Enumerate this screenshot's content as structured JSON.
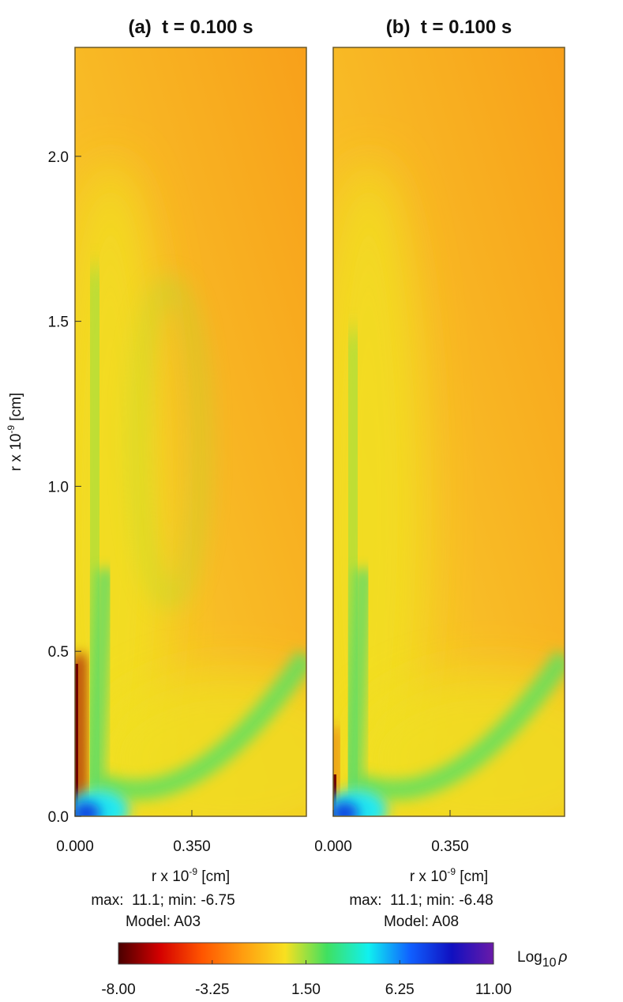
{
  "chart_data": [
    {
      "type": "heatmap",
      "title": "(a)  t = 0.100 s",
      "xlim": [
        0,
        0.693
      ],
      "xticks": [
        {
          "value": 0,
          "label": "0.000"
        },
        {
          "value": 0.35,
          "label": "0.350"
        }
      ],
      "ylim": [
        0,
        2.33
      ],
      "yticks": [
        {
          "value": 0,
          "label": "0.0"
        },
        0.5,
        {
          "value": 1,
          "label": "1.0"
        },
        1.5,
        {
          "value": 2,
          "label": "2.0"
        }
      ],
      "xlabel": {
        "base": "r x 10",
        "exponent": "-9",
        "unit": " [cm]"
      },
      "ylabel": {
        "base": "r x 10",
        "exponent": "-9",
        "unit": " [cm]"
      },
      "annotations": [
        "max:  11.1; min: -6.75",
        "Model: A03"
      ]
    },
    {
      "type": "heatmap",
      "title": "(b)  t = 0.100 s",
      "xlim": [
        0,
        0.693
      ],
      "xticks": [
        {
          "value": 0,
          "label": "0.000"
        },
        {
          "value": 0.35,
          "label": "0.350"
        }
      ],
      "ylim": [
        0,
        2.33
      ],
      "xlabel": {
        "base": "r x 10",
        "exponent": "-9",
        "unit": " [cm]"
      },
      "annotations": [
        "max:  11.1; min: -6.48",
        "Model: A08"
      ]
    }
  ],
  "colorbar": {
    "label": {
      "base": "Log",
      "subscript": "10",
      "symbol": "ρ"
    },
    "lim": [
      -8,
      11
    ],
    "ticks": [
      {
        "value": -8,
        "label": "-8.00"
      },
      {
        "value": -3.25,
        "label": "-3.25"
      },
      {
        "value": 1.5,
        "label": "1.50"
      },
      {
        "value": 6.25,
        "label": "6.25"
      },
      {
        "value": 11,
        "label": "11.00"
      }
    ],
    "colormap": [
      "#4a0000",
      "#d40000",
      "#ff5500",
      "#ff9e10",
      "#f8e020",
      "#40e060",
      "#10f0f0",
      "#1060ff",
      "#1010c0",
      "#6a1aa8"
    ]
  }
}
